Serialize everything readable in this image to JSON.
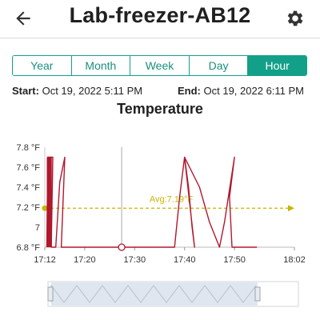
{
  "header": {
    "title": "Lab-freezer-AB12",
    "back_icon": "arrow-left-icon",
    "settings_icon": "gear-icon"
  },
  "tabs": [
    {
      "label": "Year",
      "active": false
    },
    {
      "label": "Month",
      "active": false
    },
    {
      "label": "Week",
      "active": false
    },
    {
      "label": "Day",
      "active": false
    },
    {
      "label": "Hour",
      "active": true
    }
  ],
  "range": {
    "start_label": "Start:",
    "start_value": "Oct 19, 2022 5:11 PM",
    "end_label": "End:",
    "end_value": "Oct 19, 2022 6:11 PM"
  },
  "colors": {
    "accent": "#13a088",
    "series": "#b0182d",
    "avg_line": "#c9b400",
    "navigator_fill": "#dfe6ef"
  },
  "chart_data": {
    "type": "line",
    "title": "Temperature",
    "ylim": [
      6.8,
      7.8
    ],
    "y_ticks": [
      "7.8 °F",
      "7.6 °F",
      "7.4 °F",
      "7.2 °F",
      "7",
      "6.8 °F"
    ],
    "y_tick_values": [
      7.8,
      7.6,
      7.4,
      7.2,
      7.0,
      6.8
    ],
    "x_ticks": [
      "17:12",
      "17:20",
      "17:30",
      "17:40",
      "17:50",
      "18:02"
    ],
    "x_tick_values": [
      12,
      20,
      30,
      40,
      50,
      62
    ],
    "xlim": [
      12,
      62
    ],
    "average": {
      "label": "Avg:7.19°F",
      "value": 7.19
    },
    "cursor_time": 27.4,
    "series": [
      {
        "points": [
          [
            12.4,
            6.8
          ],
          [
            12.6,
            7.7
          ],
          [
            13.0,
            7.7
          ],
          [
            13.6,
            7.7
          ],
          [
            13.3,
            6.8
          ],
          [
            14.2,
            6.8
          ],
          [
            15.0,
            7.45
          ],
          [
            16.0,
            7.7
          ],
          [
            15.3,
            6.8
          ],
          [
            27.4,
            6.8
          ],
          [
            38.0,
            6.8
          ],
          [
            39.0,
            7.3
          ],
          [
            40.0,
            7.7
          ],
          [
            40.8,
            7.4
          ],
          [
            41.5,
            7.0
          ],
          [
            42.0,
            6.8
          ],
          [
            40.0,
            7.7
          ],
          [
            43.0,
            7.4
          ],
          [
            45.0,
            7.05
          ],
          [
            47.0,
            6.8
          ],
          [
            48.0,
            7.05
          ],
          [
            50.0,
            7.7
          ],
          [
            49.0,
            7.3
          ],
          [
            49.5,
            6.8
          ],
          [
            51.0,
            6.8
          ],
          [
            54.5,
            6.8
          ]
        ]
      }
    ]
  }
}
